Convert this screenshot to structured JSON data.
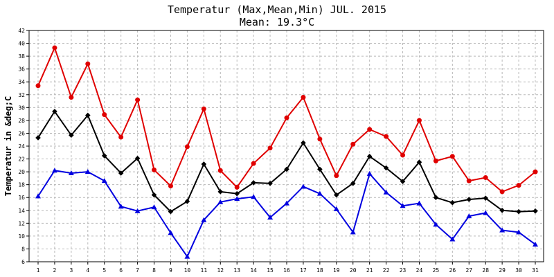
{
  "chart_data": {
    "type": "line",
    "title": "Temperatur (Max,Mean,Min) JUL. 2015",
    "subtitle": "Mean: 19.3°C",
    "ylabel": "Temperatur in &deg;C",
    "xlabel": "",
    "x": [
      "1",
      "2",
      "3",
      "4",
      "5",
      "6",
      "7",
      "8",
      "9",
      "10",
      "11",
      "12",
      "13",
      "14",
      "15",
      "16",
      "17",
      "18",
      "19",
      "20",
      "21",
      "22",
      "23",
      "24",
      "25",
      "26",
      "27",
      "28",
      "29",
      "30",
      "31"
    ],
    "yticks": [
      6,
      8,
      10,
      12,
      14,
      16,
      18,
      20,
      22,
      24,
      26,
      28,
      30,
      32,
      34,
      36,
      38,
      40,
      42
    ],
    "ylim": [
      6,
      42
    ],
    "grid": true,
    "series": [
      {
        "color": "#e00000",
        "marker": "circle",
        "values": [
          33.4,
          39.3,
          31.6,
          36.8,
          28.9,
          25.4,
          31.2,
          20.3,
          17.8,
          23.9,
          29.8,
          20.2,
          17.6,
          21.3,
          23.7,
          28.4,
          31.6,
          25.1,
          19.4,
          24.3,
          26.6,
          25.5,
          22.6,
          28.0,
          21.7,
          22.4,
          18.6,
          19.1,
          16.9,
          17.9,
          20.0
        ]
      },
      {
        "color": "#000000",
        "marker": "diamond",
        "values": [
          25.3,
          29.4,
          25.7,
          28.8,
          22.5,
          19.8,
          22.1,
          16.4,
          13.8,
          15.4,
          21.2,
          16.9,
          16.6,
          18.3,
          18.2,
          20.4,
          24.5,
          20.4,
          16.4,
          18.2,
          22.4,
          20.6,
          18.5,
          21.5,
          16.0,
          15.2,
          15.7,
          15.9,
          14.0,
          13.8,
          13.9
        ]
      },
      {
        "color": "#0000e0",
        "marker": "triangle",
        "values": [
          16.2,
          20.2,
          19.8,
          20.0,
          18.6,
          14.6,
          13.9,
          14.5,
          10.5,
          6.8,
          12.5,
          15.3,
          15.8,
          16.1,
          12.9,
          15.1,
          17.7,
          16.6,
          14.2,
          10.6,
          19.7,
          16.8,
          14.7,
          15.1,
          11.8,
          9.5,
          13.1,
          13.6,
          10.9,
          10.6,
          8.7
        ]
      }
    ]
  }
}
